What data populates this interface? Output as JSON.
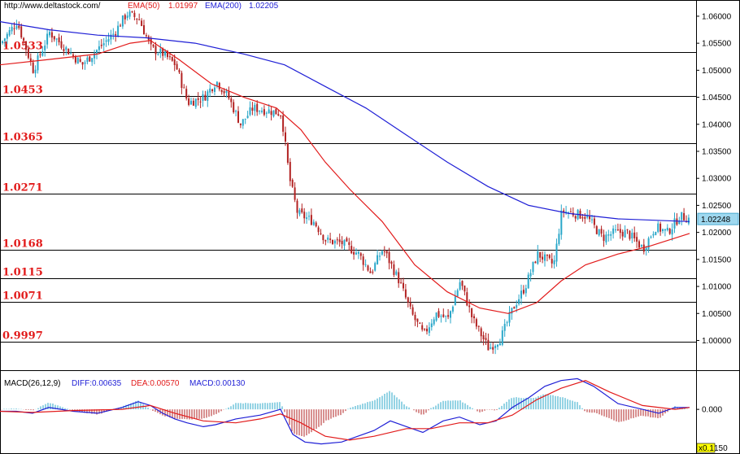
{
  "header": {
    "source": "http://www.deltastock.com/",
    "ema50_label": "EMA(50)",
    "ema50_value": "1.01997",
    "ema200_label": "EMA(200)",
    "ema200_value": "1.02205"
  },
  "macd_header": {
    "title": "MACD(26,12,9)",
    "diff_label": "DIFF:0.00635",
    "dea_label": "DEA:0.00570",
    "macd_label": "MACD:0.00130"
  },
  "colors": {
    "ema50": "#e21b1b",
    "ema200": "#1f1fd6",
    "bull": "#2aa7c9",
    "bear": "#b22222",
    "macd_pos": "#2aa7c9",
    "macd_neg": "#b22222",
    "diff": "#1f1fd6",
    "dea": "#e21b1b",
    "level_text": "#e21b1b",
    "price_tag": "#9fd8ef"
  },
  "chart_data": [
    {
      "type": "candlestick",
      "ylim": [
        0.9945,
        1.063
      ],
      "y_ticks": [
        "1.06000",
        "1.05500",
        "1.05000",
        "1.04500",
        "1.04000",
        "1.03500",
        "1.03000",
        "1.02500",
        "1.02000",
        "1.01500",
        "1.01000",
        "1.00500",
        "1.00000"
      ],
      "horizontal_levels": [
        "1.0533",
        "1.0453",
        "1.0365",
        "1.0271",
        "1.0168",
        "1.0115",
        "1.0071",
        "0.9997"
      ],
      "last_price": "1.02248",
      "close_path": [
        [
          0,
          1.055
        ],
        [
          20,
          1.059
        ],
        [
          40,
          1.05
        ],
        [
          60,
          1.057
        ],
        [
          80,
          1.054
        ],
        [
          100,
          1.051
        ],
        [
          120,
          1.054
        ],
        [
          140,
          1.057
        ],
        [
          155,
          1.0605
        ],
        [
          170,
          1.0595
        ],
        [
          185,
          1.054
        ],
        [
          200,
          1.053
        ],
        [
          215,
          1.051
        ],
        [
          230,
          1.044
        ],
        [
          250,
          1.045
        ],
        [
          265,
          1.048
        ],
        [
          280,
          1.045
        ],
        [
          295,
          1.04
        ],
        [
          310,
          1.043
        ],
        [
          330,
          1.0425
        ],
        [
          345,
          1.042
        ],
        [
          355,
          1.03
        ],
        [
          365,
          1.0235
        ],
        [
          385,
          1.022
        ],
        [
          400,
          1.0185
        ],
        [
          420,
          1.018
        ],
        [
          440,
          1.016
        ],
        [
          455,
          1.0125
        ],
        [
          470,
          1.017
        ],
        [
          490,
          1.011
        ],
        [
          505,
          1.005
        ],
        [
          520,
          1.001
        ],
        [
          535,
          1.005
        ],
        [
          550,
          1.004
        ],
        [
          565,
          1.011
        ],
        [
          580,
          1.004
        ],
        [
          600,
          0.9985
        ],
        [
          615,
          1.0005
        ],
        [
          630,
          1.006
        ],
        [
          645,
          1.01
        ],
        [
          660,
          1.016
        ],
        [
          680,
          1.014
        ],
        [
          690,
          1.024
        ],
        [
          705,
          1.0235
        ],
        [
          720,
          1.023
        ],
        [
          740,
          1.019
        ],
        [
          755,
          1.02
        ],
        [
          770,
          1.02
        ],
        [
          790,
          1.017
        ],
        [
          805,
          1.021
        ],
        [
          820,
          1.02
        ],
        [
          835,
          1.023
        ],
        [
          848,
          1.0225
        ]
      ],
      "ema50": [
        [
          0,
          1.051
        ],
        [
          60,
          1.052
        ],
        [
          120,
          1.053
        ],
        [
          160,
          1.055
        ],
        [
          185,
          1.0555
        ],
        [
          220,
          1.052
        ],
        [
          260,
          1.0475
        ],
        [
          300,
          1.045
        ],
        [
          340,
          1.043
        ],
        [
          370,
          1.039
        ],
        [
          400,
          1.033
        ],
        [
          430,
          1.028
        ],
        [
          470,
          1.022
        ],
        [
          510,
          1.014
        ],
        [
          550,
          1.009
        ],
        [
          590,
          1.006
        ],
        [
          625,
          1.005
        ],
        [
          660,
          1.007
        ],
        [
          690,
          1.011
        ],
        [
          720,
          1.014
        ],
        [
          760,
          1.016
        ],
        [
          800,
          1.0175
        ],
        [
          848,
          1.0198
        ]
      ],
      "ema200": [
        [
          0,
          1.059
        ],
        [
          60,
          1.0575
        ],
        [
          120,
          1.0565
        ],
        [
          180,
          1.056
        ],
        [
          240,
          1.055
        ],
        [
          300,
          1.053
        ],
        [
          350,
          1.051
        ],
        [
          400,
          1.047
        ],
        [
          450,
          1.043
        ],
        [
          500,
          1.038
        ],
        [
          550,
          1.033
        ],
        [
          600,
          1.0285
        ],
        [
          650,
          1.025
        ],
        [
          700,
          1.0235
        ],
        [
          760,
          1.0225
        ],
        [
          848,
          1.022
        ]
      ]
    },
    {
      "type": "macd",
      "ylim": [
        -0.0095,
        0.0085
      ],
      "y_ticks": [
        "0.000"
      ],
      "bottom_tick_fragment": "150",
      "scale_badge": "x0.1",
      "diff": [
        [
          0,
          -0.0005
        ],
        [
          20,
          -0.0005
        ],
        [
          40,
          -0.001
        ],
        [
          60,
          0.0005
        ],
        [
          90,
          -0.0005
        ],
        [
          120,
          -0.001
        ],
        [
          150,
          0.0005
        ],
        [
          170,
          0.002
        ],
        [
          185,
          0.001
        ],
        [
          200,
          -0.001
        ],
        [
          215,
          -0.0025
        ],
        [
          230,
          -0.0035
        ],
        [
          250,
          -0.0045
        ],
        [
          265,
          -0.004
        ],
        [
          290,
          -0.0025
        ],
        [
          320,
          -0.0015
        ],
        [
          345,
          0.0
        ],
        [
          360,
          -0.0065
        ],
        [
          375,
          -0.0085
        ],
        [
          395,
          -0.009
        ],
        [
          420,
          -0.0085
        ],
        [
          440,
          -0.007
        ],
        [
          460,
          -0.0055
        ],
        [
          480,
          -0.003
        ],
        [
          500,
          -0.0045
        ],
        [
          520,
          -0.006
        ],
        [
          545,
          -0.003
        ],
        [
          565,
          -0.002
        ],
        [
          590,
          -0.004
        ],
        [
          610,
          -0.003
        ],
        [
          630,
          0.0005
        ],
        [
          650,
          0.003
        ],
        [
          670,
          0.006
        ],
        [
          690,
          0.0075
        ],
        [
          710,
          0.008
        ],
        [
          730,
          0.006
        ],
        [
          760,
          0.0015
        ],
        [
          790,
          0.0
        ],
        [
          810,
          -0.001
        ],
        [
          830,
          0.0005
        ],
        [
          848,
          0.0005
        ]
      ],
      "dea": [
        [
          0,
          -0.0005
        ],
        [
          40,
          -0.0008
        ],
        [
          90,
          -0.0003
        ],
        [
          150,
          0.0
        ],
        [
          185,
          0.001
        ],
        [
          215,
          -0.001
        ],
        [
          250,
          -0.003
        ],
        [
          290,
          -0.0035
        ],
        [
          320,
          -0.0025
        ],
        [
          345,
          -0.0012
        ],
        [
          370,
          -0.0035
        ],
        [
          400,
          -0.007
        ],
        [
          430,
          -0.008
        ],
        [
          460,
          -0.007
        ],
        [
          500,
          -0.005
        ],
        [
          530,
          -0.005
        ],
        [
          565,
          -0.0035
        ],
        [
          600,
          -0.0035
        ],
        [
          630,
          -0.0015
        ],
        [
          660,
          0.0025
        ],
        [
          690,
          0.0055
        ],
        [
          720,
          0.0075
        ],
        [
          750,
          0.0045
        ],
        [
          790,
          0.001
        ],
        [
          830,
          0.0
        ],
        [
          848,
          0.0005
        ]
      ]
    }
  ]
}
